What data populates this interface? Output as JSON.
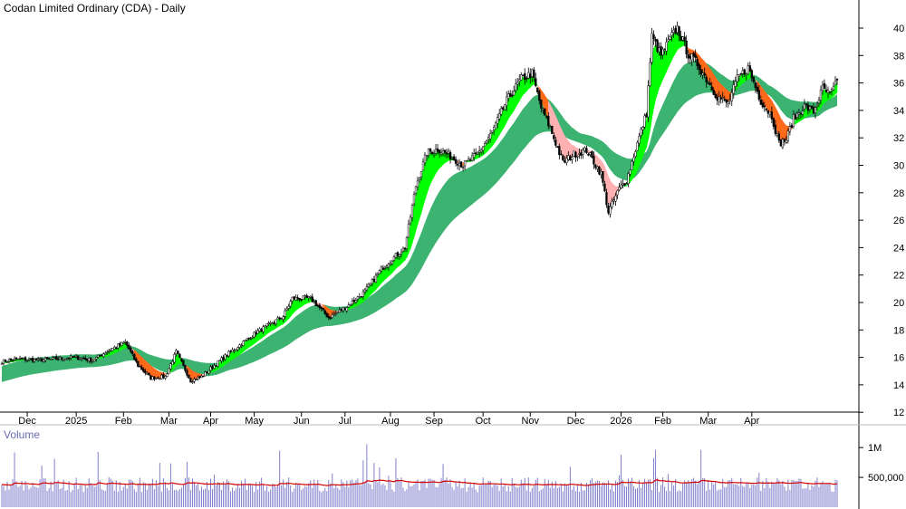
{
  "chart_data": [
    {
      "type": "candlestick",
      "title": "Codan Limited Ordinary (CDA) - Daily",
      "y_ticks": [
        40,
        38,
        36,
        34,
        32,
        30,
        28,
        26,
        24,
        22,
        20,
        18,
        16,
        14,
        12
      ],
      "ylim": [
        11.5,
        41
      ],
      "x_ticks": [
        "Dec",
        "2025",
        "Feb",
        "Mar",
        "Apr",
        "May",
        "Jun",
        "Jul",
        "Aug",
        "Sep",
        "Oct",
        "Nov",
        "Dec",
        "2026",
        "Feb",
        "Mar",
        "Apr"
      ],
      "price_anchors": [
        [
          0,
          15.7
        ],
        [
          10,
          15.9
        ],
        [
          20,
          15.8
        ],
        [
          30,
          15.9
        ],
        [
          40,
          16.0
        ],
        [
          50,
          15.8
        ],
        [
          60,
          16.6
        ],
        [
          68,
          17.1
        ],
        [
          75,
          15.4
        ],
        [
          82,
          14.5
        ],
        [
          90,
          14.6
        ],
        [
          96,
          16.4
        ],
        [
          104,
          14.3
        ],
        [
          110,
          14.6
        ],
        [
          115,
          15.2
        ],
        [
          125,
          16.3
        ],
        [
          140,
          17.8
        ],
        [
          155,
          19.0
        ],
        [
          160,
          20.3
        ],
        [
          170,
          20.3
        ],
        [
          180,
          18.9
        ],
        [
          190,
          19.7
        ],
        [
          200,
          20.8
        ],
        [
          210,
          22.6
        ],
        [
          222,
          24.0
        ],
        [
          228,
          28.5
        ],
        [
          234,
          30.9
        ],
        [
          240,
          31.2
        ],
        [
          248,
          30.6
        ],
        [
          254,
          30.0
        ],
        [
          262,
          30.8
        ],
        [
          270,
          32.4
        ],
        [
          278,
          34.7
        ],
        [
          286,
          36.3
        ],
        [
          292,
          36.7
        ],
        [
          297,
          34.2
        ],
        [
          302,
          32.7
        ],
        [
          309,
          30.2
        ],
        [
          315,
          30.8
        ],
        [
          322,
          31.1
        ],
        [
          330,
          29.4
        ],
        [
          334,
          26.6
        ],
        [
          340,
          28.3
        ],
        [
          344,
          28.9
        ],
        [
          350,
          31.6
        ],
        [
          355,
          33.8
        ],
        [
          358,
          39.4
        ],
        [
          363,
          38.0
        ],
        [
          368,
          39.2
        ],
        [
          372,
          40.0
        ],
        [
          378,
          38.1
        ],
        [
          383,
          37.4
        ],
        [
          388,
          36.3
        ],
        [
          394,
          35.0
        ],
        [
          400,
          34.5
        ],
        [
          405,
          36.3
        ],
        [
          411,
          37.1
        ],
        [
          418,
          34.7
        ],
        [
          424,
          33.6
        ],
        [
          428,
          31.6
        ],
        [
          432,
          31.9
        ],
        [
          436,
          33.4
        ],
        [
          442,
          34.3
        ],
        [
          447,
          33.9
        ],
        [
          452,
          35.6
        ],
        [
          456,
          35.1
        ],
        [
          460,
          36.1
        ]
      ],
      "indicators": {
        "short_term_ema_band": {
          "up_color": "#00ff00",
          "down_color": "#ff6a1a",
          "weak_color": "#ffb0b0"
        },
        "long_term_ema_band": {
          "color": "#3cb371"
        }
      }
    },
    {
      "type": "bar",
      "title": "Volume",
      "y_ticks": [
        "1M",
        "500,000"
      ],
      "bar_color": "#8080cc",
      "average_line_color": "#d40000"
    }
  ]
}
